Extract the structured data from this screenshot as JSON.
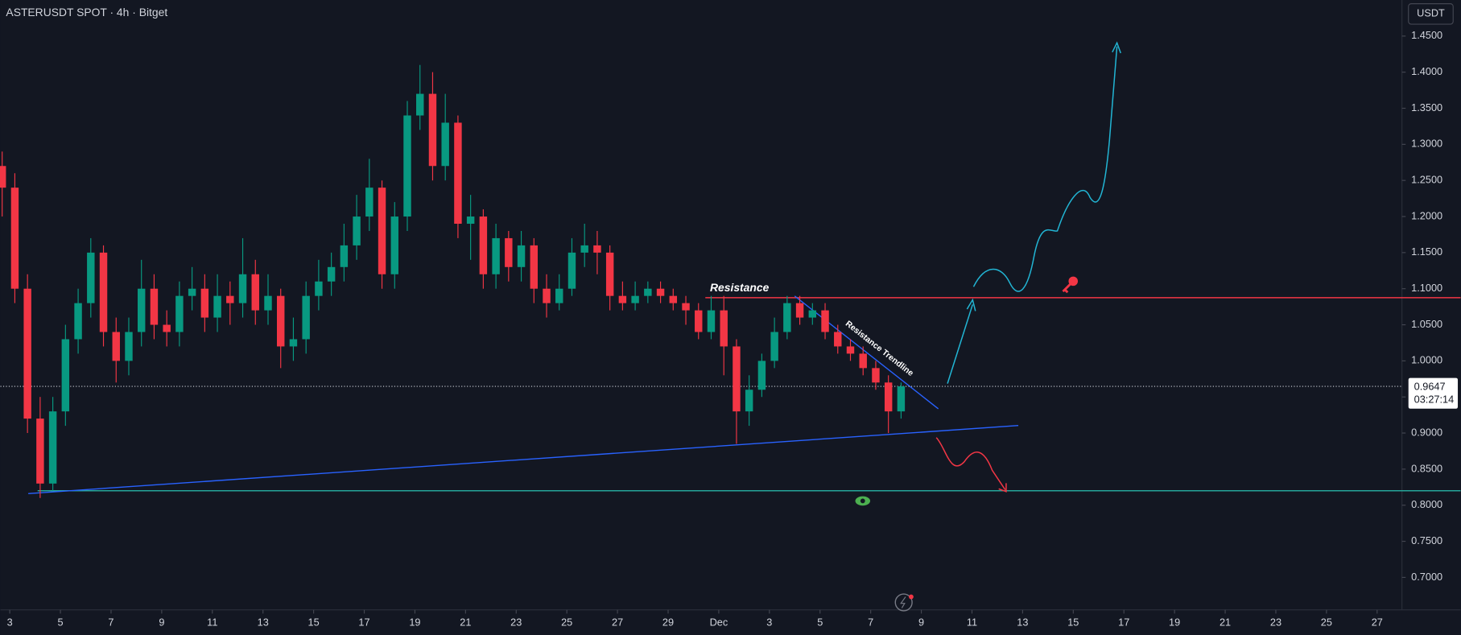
{
  "chart_data": {
    "type": "candlestick",
    "title": "ASTERUSDT SPOT · 4h · Bitget",
    "currency": "USDT",
    "up_color": "#089981",
    "down_color": "#f23645",
    "xlim": [
      1.63,
      56.98
    ],
    "xticks": [
      {
        "value": 2,
        "label": "3"
      },
      {
        "value": 4,
        "label": "5"
      },
      {
        "value": 6,
        "label": "7"
      },
      {
        "value": 8,
        "label": "9"
      },
      {
        "value": 10,
        "label": "11"
      },
      {
        "value": 12,
        "label": "13"
      },
      {
        "value": 14,
        "label": "15"
      },
      {
        "value": 16,
        "label": "17"
      },
      {
        "value": 18,
        "label": "19"
      },
      {
        "value": 20,
        "label": "21"
      },
      {
        "value": 22,
        "label": "23"
      },
      {
        "value": 24,
        "label": "25"
      },
      {
        "value": 26,
        "label": "27"
      },
      {
        "value": 28,
        "label": "29"
      },
      {
        "value": 30,
        "label": "Dec"
      },
      {
        "value": 32,
        "label": "3"
      },
      {
        "value": 34,
        "label": "5"
      },
      {
        "value": 36,
        "label": "7"
      },
      {
        "value": 38,
        "label": "9"
      },
      {
        "value": 40,
        "label": "11"
      },
      {
        "value": 42,
        "label": "13"
      },
      {
        "value": 44,
        "label": "15"
      },
      {
        "value": 46,
        "label": "17"
      },
      {
        "value": 48,
        "label": "19"
      },
      {
        "value": 50,
        "label": "21"
      },
      {
        "value": 52,
        "label": "23"
      },
      {
        "value": 54,
        "label": "25"
      },
      {
        "value": 56,
        "label": "27"
      }
    ],
    "ylim": [
      0.655,
      1.5
    ],
    "yticks": [
      {
        "value": 0.7,
        "label": "0.7000"
      },
      {
        "value": 0.75,
        "label": "0.7500"
      },
      {
        "value": 0.8,
        "label": "0.8000"
      },
      {
        "value": 0.85,
        "label": "0.8500"
      },
      {
        "value": 0.9,
        "label": "0.9000"
      },
      {
        "value": 0.95,
        "label": "0.9500"
      },
      {
        "value": 1.0,
        "label": "1.0000"
      },
      {
        "value": 1.05,
        "label": "1.0500"
      },
      {
        "value": 1.1,
        "label": "1.1000"
      },
      {
        "value": 1.15,
        "label": "1.1500"
      },
      {
        "value": 1.2,
        "label": "1.2000"
      },
      {
        "value": 1.25,
        "label": "1.2500"
      },
      {
        "value": 1.3,
        "label": "1.3000"
      },
      {
        "value": 1.35,
        "label": "1.3500"
      },
      {
        "value": 1.4,
        "label": "1.4000"
      },
      {
        "value": 1.45,
        "label": "1.4500"
      }
    ],
    "candles": {
      "x": [
        1.7,
        2.2,
        2.7,
        3.2,
        3.7,
        4.2,
        4.7,
        5.2,
        5.7,
        6.2,
        6.7,
        7.2,
        7.7,
        8.2,
        8.7,
        9.2,
        9.7,
        10.2,
        10.7,
        11.2,
        11.7,
        12.2,
        12.7,
        13.2,
        13.7,
        14.2,
        14.7,
        15.2,
        15.7,
        16.2,
        16.7,
        17.2,
        17.7,
        18.2,
        18.7,
        19.2,
        19.7,
        20.2,
        20.7,
        21.2,
        21.7,
        22.2,
        22.7,
        23.2,
        23.7,
        24.2,
        24.7,
        25.2,
        25.7,
        26.2,
        26.7,
        27.2,
        27.7,
        28.2,
        28.7,
        29.2,
        29.7,
        30.2,
        30.7,
        31.2,
        31.7,
        32.2,
        32.7,
        33.2,
        33.7,
        34.2,
        34.7,
        35.2,
        35.7,
        36.2,
        36.7,
        37.2
      ],
      "open": [
        1.27,
        1.24,
        1.1,
        0.92,
        0.83,
        0.93,
        1.03,
        1.08,
        1.15,
        1.04,
        1.0,
        1.04,
        1.1,
        1.05,
        1.04,
        1.09,
        1.1,
        1.06,
        1.09,
        1.08,
        1.12,
        1.07,
        1.09,
        1.02,
        1.03,
        1.09,
        1.11,
        1.13,
        1.16,
        1.2,
        1.24,
        1.12,
        1.2,
        1.34,
        1.37,
        1.27,
        1.33,
        1.19,
        1.2,
        1.12,
        1.17,
        1.13,
        1.16,
        1.1,
        1.08,
        1.1,
        1.15,
        1.16,
        1.15,
        1.09,
        1.08,
        1.09,
        1.1,
        1.09,
        1.08,
        1.07,
        1.04,
        1.07,
        1.02,
        0.93,
        0.96,
        1.0,
        1.04,
        1.08,
        1.06,
        1.07,
        1.04,
        1.02,
        1.01,
        0.99,
        0.97,
        0.93
      ],
      "high": [
        1.29,
        1.26,
        1.12,
        0.95,
        0.95,
        1.05,
        1.1,
        1.17,
        1.16,
        1.06,
        1.06,
        1.14,
        1.12,
        1.07,
        1.11,
        1.13,
        1.12,
        1.12,
        1.11,
        1.17,
        1.14,
        1.12,
        1.1,
        1.06,
        1.11,
        1.14,
        1.15,
        1.19,
        1.23,
        1.28,
        1.25,
        1.22,
        1.36,
        1.41,
        1.4,
        1.37,
        1.34,
        1.23,
        1.21,
        1.19,
        1.18,
        1.18,
        1.17,
        1.12,
        1.12,
        1.17,
        1.19,
        1.18,
        1.16,
        1.11,
        1.11,
        1.11,
        1.11,
        1.1,
        1.09,
        1.08,
        1.09,
        1.09,
        1.03,
        0.98,
        1.01,
        1.06,
        1.09,
        1.09,
        1.08,
        1.08,
        1.05,
        1.03,
        1.02,
        1.0,
        0.98,
        0.97
      ],
      "low": [
        1.2,
        1.08,
        0.9,
        0.81,
        0.82,
        0.91,
        1.01,
        1.06,
        1.02,
        0.97,
        0.98,
        1.02,
        1.03,
        1.02,
        1.02,
        1.07,
        1.04,
        1.04,
        1.05,
        1.06,
        1.05,
        1.05,
        0.99,
        1.0,
        1.01,
        1.07,
        1.09,
        1.11,
        1.14,
        1.18,
        1.1,
        1.1,
        1.18,
        1.32,
        1.25,
        1.25,
        1.17,
        1.14,
        1.1,
        1.1,
        1.11,
        1.11,
        1.08,
        1.06,
        1.07,
        1.09,
        1.13,
        1.12,
        1.07,
        1.07,
        1.07,
        1.08,
        1.08,
        1.07,
        1.05,
        1.03,
        1.03,
        0.98,
        0.885,
        0.91,
        0.95,
        0.99,
        1.03,
        1.05,
        1.05,
        1.03,
        1.01,
        1.0,
        0.98,
        0.96,
        0.9,
        0.92
      ],
      "close": [
        1.24,
        1.1,
        0.92,
        0.83,
        0.93,
        1.03,
        1.08,
        1.15,
        1.04,
        1.0,
        1.04,
        1.1,
        1.05,
        1.04,
        1.09,
        1.1,
        1.06,
        1.09,
        1.08,
        1.12,
        1.07,
        1.09,
        1.02,
        1.03,
        1.09,
        1.11,
        1.13,
        1.16,
        1.2,
        1.24,
        1.12,
        1.2,
        1.34,
        1.37,
        1.27,
        1.33,
        1.19,
        1.2,
        1.12,
        1.17,
        1.13,
        1.16,
        1.1,
        1.08,
        1.1,
        1.15,
        1.16,
        1.15,
        1.09,
        1.08,
        1.09,
        1.1,
        1.09,
        1.08,
        1.07,
        1.04,
        1.07,
        1.02,
        0.93,
        0.96,
        1.0,
        1.04,
        1.08,
        1.06,
        1.07,
        1.04,
        1.02,
        1.01,
        0.99,
        0.97,
        0.93,
        0.9647
      ]
    },
    "resistance": {
      "label": "Resistance",
      "price": 1.0875,
      "x_start": 29.47,
      "color": "#f23645"
    },
    "support": {
      "price": 0.82,
      "x_start": 3.1,
      "color": "#26a69a"
    },
    "trendlines": [
      {
        "label": "Resistance Trendline",
        "x": [
          33.0,
          38.67
        ],
        "y": [
          1.0898,
          0.9336
        ],
        "color": "#2962ff"
      },
      {
        "x": [
          2.73,
          41.83
        ],
        "y": [
          0.8161,
          0.9104
        ],
        "color": "#2962ff"
      }
    ],
    "last_price": 0.9647,
    "countdown": "03:27:14"
  }
}
